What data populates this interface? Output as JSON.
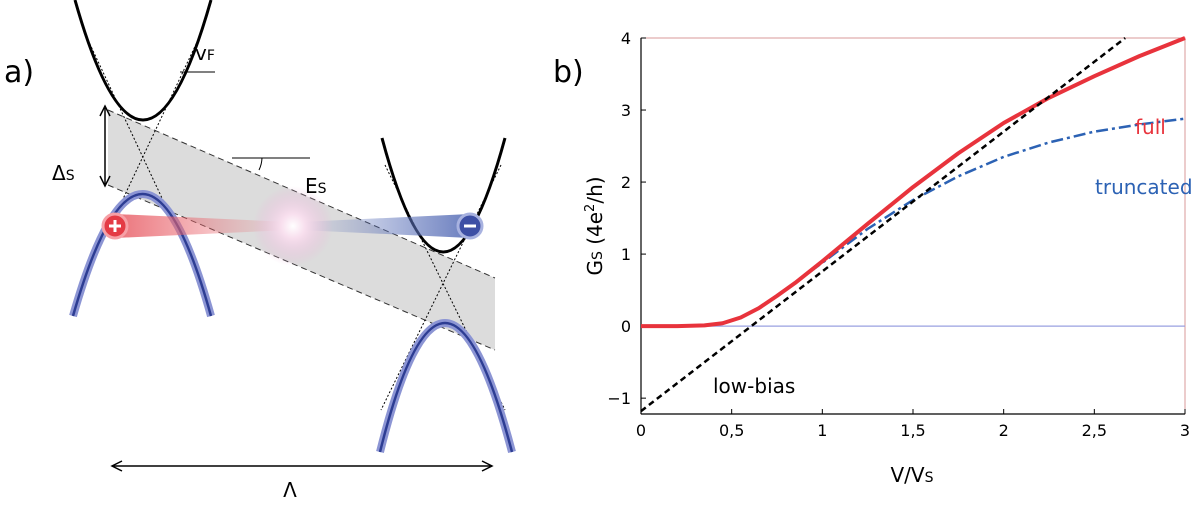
{
  "diagram": {
    "label": "a)",
    "vf": [
      "v",
      "F"
    ],
    "delta": [
      "Δ",
      "S"
    ],
    "es": [
      "E",
      "S"
    ],
    "lambda": "Λ"
  },
  "chart_data": {
    "type": "line",
    "panel_label": "b)",
    "xlabel": [
      "V/V",
      "S"
    ],
    "ylabel": [
      "G",
      "S",
      " (4e",
      "2",
      "/h)"
    ],
    "xlim": [
      0,
      3
    ],
    "ylim": [
      -1.22,
      4
    ],
    "xticks": [
      0,
      {
        "value": 0.5,
        "label": "0,5"
      },
      1,
      {
        "value": 1.5,
        "label": "1,5"
      },
      2,
      {
        "value": 2.5,
        "label": "2,5"
      },
      3
    ],
    "yticks": [
      {
        "value": -1,
        "label": "−1"
      },
      0,
      1,
      2,
      3,
      4
    ],
    "series": [
      {
        "name": "full",
        "color": "#e8333c",
        "style": "solid",
        "x": [
          0,
          0.2,
          0.35,
          0.45,
          0.55,
          0.65,
          0.75,
          0.85,
          1,
          1.25,
          1.5,
          1.75,
          2,
          2.25,
          2.5,
          2.75,
          3
        ],
        "values": [
          0,
          0,
          0.01,
          0.04,
          0.12,
          0.25,
          0.42,
          0.6,
          0.9,
          1.42,
          1.93,
          2.4,
          2.82,
          3.17,
          3.47,
          3.75,
          4.0
        ]
      },
      {
        "name": "truncated",
        "color": "#2c62b4",
        "style": "dash-dot",
        "x": [
          0,
          0.2,
          0.35,
          0.45,
          0.55,
          0.65,
          0.75,
          0.85,
          1,
          1.25,
          1.5,
          1.75,
          2,
          2.25,
          2.5,
          2.75,
          3
        ],
        "values": [
          0,
          0,
          0.01,
          0.04,
          0.12,
          0.25,
          0.42,
          0.6,
          0.88,
          1.35,
          1.75,
          2.08,
          2.35,
          2.55,
          2.7,
          2.8,
          2.88
        ]
      },
      {
        "name": "low-bias",
        "color": "#000000",
        "style": "dashed",
        "x": [
          0,
          2.67
        ],
        "values": [
          -1.18,
          4
        ]
      }
    ]
  }
}
